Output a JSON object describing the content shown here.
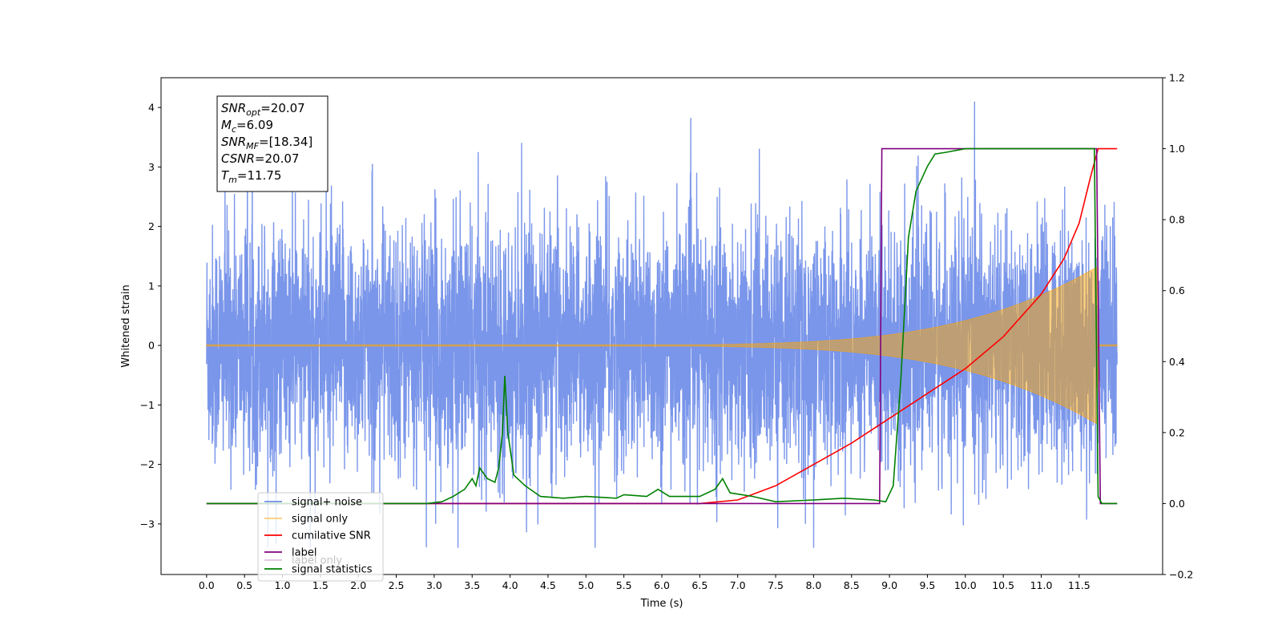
{
  "chart_data": {
    "type": "line",
    "xlabel": "Time (s)",
    "ylabel": "Whitened strain",
    "xlim": [
      -0.6,
      12.6
    ],
    "ylim": [
      -3.85,
      4.5
    ],
    "y2lim": [
      -0.2,
      1.2
    ],
    "x_ticks": [
      "0.0",
      "0.5",
      "1.0",
      "1.5",
      "2.0",
      "2.5",
      "3.0",
      "3.5",
      "4.0",
      "4.5",
      "5.0",
      "5.5",
      "6.0",
      "6.5",
      "7.0",
      "7.5",
      "8.0",
      "8.5",
      "9.0",
      "9.5",
      "10.0",
      "10.5",
      "11.0",
      "11.5"
    ],
    "y_ticks": [
      "4",
      "3",
      "2",
      "1",
      "0",
      "−1",
      "−2",
      "−3"
    ],
    "y2_ticks": [
      "1.2",
      "1.0",
      "0.8",
      "0.6",
      "0.4",
      "0.2",
      "0.0",
      "−0.2"
    ],
    "info_box": [
      {
        "sym": "SNR",
        "sub": "opt",
        "val": "=20.07"
      },
      {
        "sym": "M",
        "sub": "c",
        "val": "=6.09"
      },
      {
        "sym": "SNR",
        "sub": "MF",
        "val": "=[18.34]"
      },
      {
        "sym": "CSNR",
        "sub": "",
        "val": "=20.07"
      },
      {
        "sym": "T",
        "sub": "m",
        "val": "=11.75"
      }
    ],
    "legend_position": "lower-left",
    "series": [
      {
        "name": "signal+ noise",
        "color": "#4169e1",
        "axis": "left",
        "description": "whitened noise plus signal, roughly uniform amplitude about 0, sampled densely over 0–12 s"
      },
      {
        "name": "signal only",
        "color": "#ffa500",
        "axis": "left",
        "description": "chirp envelope growing after ~6.8 s, peaking near 11.7 s (~±1.2), zero after 11.75 s"
      },
      {
        "name": "cumilative SNR",
        "color": "#ff0000",
        "axis": "right",
        "points": [
          [
            0,
            0
          ],
          [
            6.5,
            0
          ],
          [
            7.0,
            0.01
          ],
          [
            7.5,
            0.05
          ],
          [
            8.0,
            0.11
          ],
          [
            8.5,
            0.17
          ],
          [
            9.0,
            0.24
          ],
          [
            9.5,
            0.31
          ],
          [
            10.0,
            0.38
          ],
          [
            10.5,
            0.47
          ],
          [
            11.0,
            0.59
          ],
          [
            11.3,
            0.69
          ],
          [
            11.5,
            0.79
          ],
          [
            11.65,
            0.92
          ],
          [
            11.75,
            1.0
          ],
          [
            12.0,
            1.0
          ]
        ]
      },
      {
        "name": "label",
        "color": "#800080",
        "axis": "right",
        "points": [
          [
            0,
            0
          ],
          [
            8.87,
            0
          ],
          [
            8.9,
            1.0
          ],
          [
            11.73,
            1.0
          ],
          [
            11.78,
            0
          ],
          [
            12.0,
            0
          ]
        ]
      },
      {
        "name": "label only",
        "color": "#800080",
        "axis": "right",
        "points": []
      },
      {
        "name": "signal statistics",
        "color": "#008000",
        "axis": "right",
        "points": [
          [
            0,
            0
          ],
          [
            2.9,
            0
          ],
          [
            3.1,
            0.005
          ],
          [
            3.25,
            0.02
          ],
          [
            3.4,
            0.04
          ],
          [
            3.5,
            0.07
          ],
          [
            3.55,
            0.05
          ],
          [
            3.6,
            0.1
          ],
          [
            3.7,
            0.07
          ],
          [
            3.8,
            0.06
          ],
          [
            3.85,
            0.1
          ],
          [
            3.9,
            0.2
          ],
          [
            3.93,
            0.36
          ],
          [
            3.97,
            0.2
          ],
          [
            4.05,
            0.08
          ],
          [
            4.2,
            0.05
          ],
          [
            4.4,
            0.02
          ],
          [
            4.7,
            0.015
          ],
          [
            5.0,
            0.02
          ],
          [
            5.4,
            0.015
          ],
          [
            5.5,
            0.025
          ],
          [
            5.8,
            0.02
          ],
          [
            5.95,
            0.04
          ],
          [
            6.1,
            0.02
          ],
          [
            6.5,
            0.02
          ],
          [
            6.7,
            0.04
          ],
          [
            6.8,
            0.07
          ],
          [
            6.9,
            0.03
          ],
          [
            7.2,
            0.02
          ],
          [
            7.5,
            0.005
          ],
          [
            8.0,
            0.01
          ],
          [
            8.4,
            0.015
          ],
          [
            8.8,
            0.01
          ],
          [
            8.95,
            0.005
          ],
          [
            9.05,
            0.05
          ],
          [
            9.15,
            0.35
          ],
          [
            9.25,
            0.75
          ],
          [
            9.35,
            0.88
          ],
          [
            9.5,
            0.95
          ],
          [
            9.6,
            0.985
          ],
          [
            9.75,
            0.99
          ],
          [
            10.0,
            1.0
          ],
          [
            11.7,
            1.0
          ],
          [
            11.75,
            0.02
          ],
          [
            11.8,
            0
          ],
          [
            12.0,
            0
          ]
        ]
      }
    ]
  }
}
